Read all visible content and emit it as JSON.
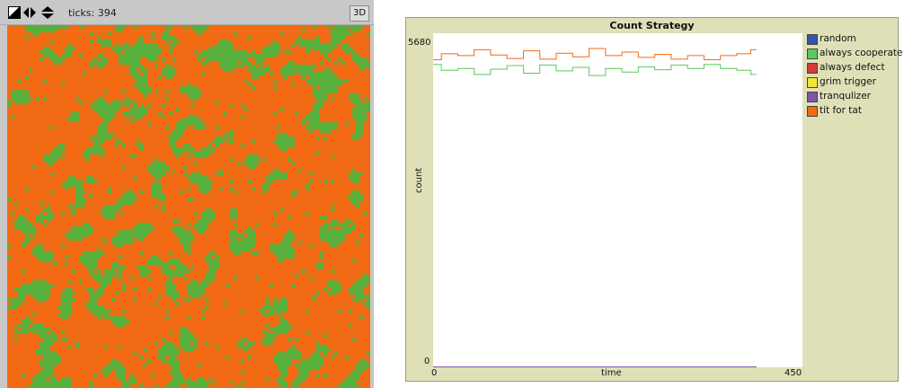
{
  "world": {
    "ticks_label": "ticks: 394",
    "btn_3d": "3D",
    "colors": {
      "patch_a": "#f26a14",
      "patch_b": "#58b03c",
      "frame": "#c8c8c8"
    },
    "toolbar_icons": [
      "view-mode-icon",
      "horizontal-arrows-icon",
      "vertical-arrows-icon"
    ]
  },
  "plot": {
    "title": "Count Strategy",
    "legend": [
      {
        "label": "random",
        "color": "#3355aa"
      },
      {
        "label": "always cooperate",
        "color": "#5cc85c"
      },
      {
        "label": "always defect",
        "color": "#d33a3a"
      },
      {
        "label": "grim trigger",
        "color": "#f5e636"
      },
      {
        "label": "tranqulizer",
        "color": "#7d55a5"
      },
      {
        "label": "tit for tat",
        "color": "#f26a14"
      }
    ]
  },
  "chart_data": {
    "type": "line",
    "title": "Count Strategy",
    "xlabel": "time",
    "ylabel": "count",
    "xlim": [
      0,
      450
    ],
    "ylim": [
      0,
      5680
    ],
    "x_tick_labels": [
      "0",
      "450"
    ],
    "y_tick_labels": [
      "0",
      "5680"
    ],
    "legend_position": "right",
    "series": [
      {
        "name": "random",
        "color": "#3355aa",
        "x": [
          0,
          394
        ],
        "y": [
          0,
          0
        ]
      },
      {
        "name": "always cooperate",
        "color": "#5cc85c",
        "x": [
          0,
          20,
          40,
          60,
          80,
          100,
          120,
          140,
          160,
          180,
          200,
          220,
          240,
          260,
          280,
          300,
          320,
          340,
          360,
          380,
          394
        ],
        "y": [
          5150,
          5050,
          5080,
          4980,
          5070,
          5130,
          5000,
          5140,
          5040,
          5100,
          4960,
          5080,
          5020,
          5110,
          5060,
          5140,
          5080,
          5150,
          5080,
          5050,
          4980
        ]
      },
      {
        "name": "always defect",
        "color": "#d33a3a",
        "x": [
          0,
          394
        ],
        "y": [
          0,
          0
        ]
      },
      {
        "name": "grim trigger",
        "color": "#f5e636",
        "x": [
          0,
          394
        ],
        "y": [
          0,
          0
        ]
      },
      {
        "name": "tranqulizer",
        "color": "#7d55a5",
        "x": [
          0,
          394
        ],
        "y": [
          0,
          0
        ]
      },
      {
        "name": "tit for tat",
        "color": "#f26a14",
        "x": [
          0,
          20,
          40,
          60,
          80,
          100,
          120,
          140,
          160,
          180,
          200,
          220,
          240,
          260,
          280,
          300,
          320,
          340,
          360,
          380,
          394
        ],
        "y": [
          5230,
          5330,
          5300,
          5400,
          5310,
          5250,
          5380,
          5240,
          5340,
          5280,
          5420,
          5300,
          5360,
          5270,
          5320,
          5240,
          5300,
          5230,
          5300,
          5330,
          5400
        ]
      }
    ]
  }
}
